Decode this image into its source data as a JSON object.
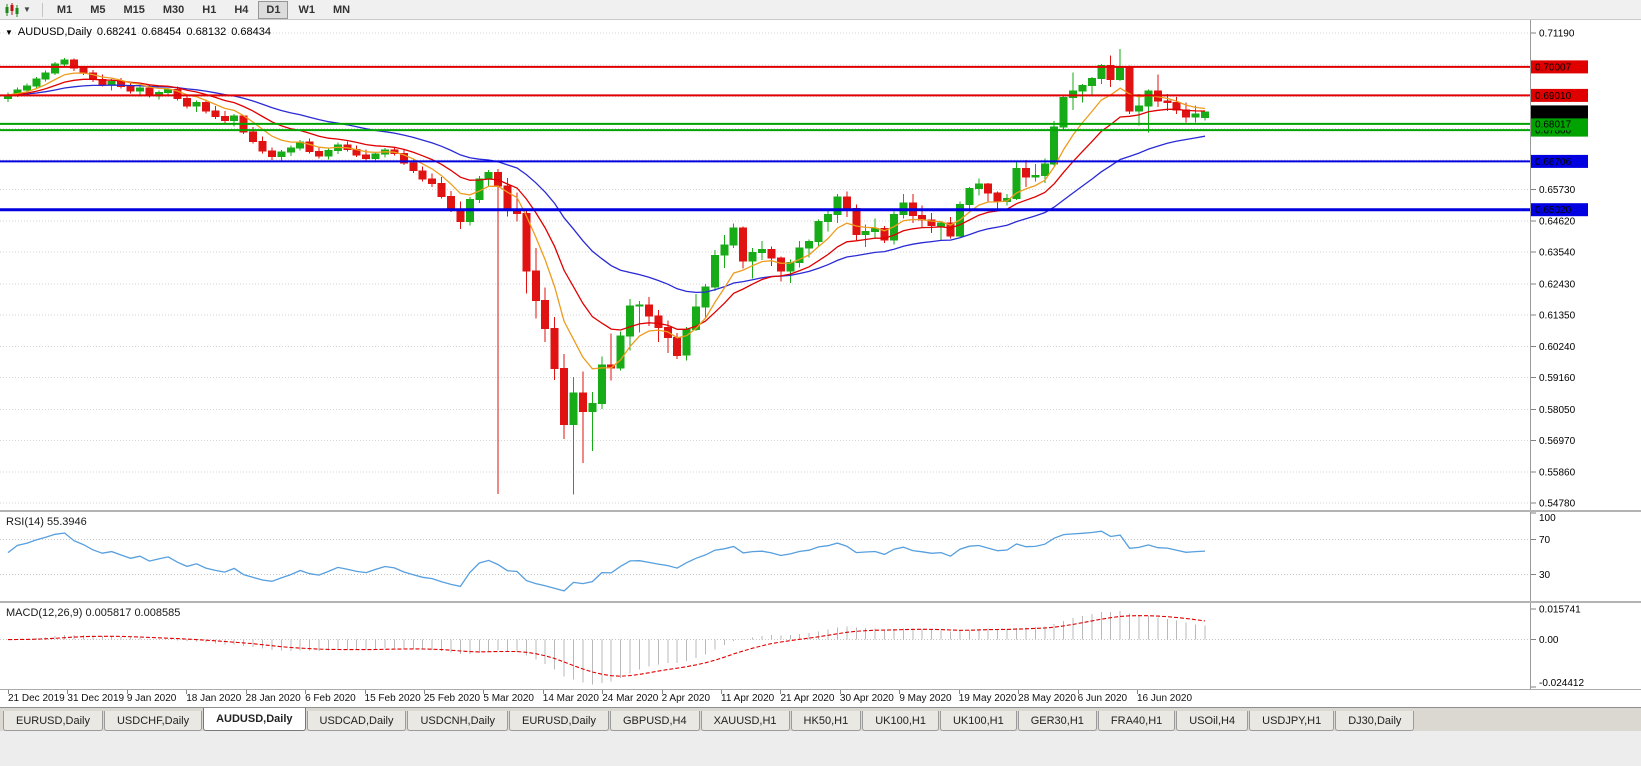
{
  "toolbar": {
    "timeframes": [
      "M1",
      "M5",
      "M15",
      "M30",
      "H1",
      "H4",
      "D1",
      "W1",
      "MN"
    ],
    "active_timeframe": "D1",
    "chart_type_icon": "candlestick-chart-icon",
    "caret_glyph": "▼"
  },
  "chart_header": {
    "dropdown_glyph": "▼",
    "symbol_label": "AUDUSD,Daily",
    "open": "0.68241",
    "high": "0.68454",
    "low": "0.68132",
    "close": "0.68434"
  },
  "chart_data": {
    "type": "candlestick",
    "symbol": "AUDUSD",
    "timeframe": "Daily",
    "colors": {
      "bull": "#17ab17",
      "bear": "#e01212",
      "grid": "#d6d6d6",
      "axis_line": "#9a9a9a"
    },
    "price_axis": {
      "max": 0.7119,
      "min": 0.5478,
      "grid": [
        0.7119,
        0.7008,
        0.6897,
        0.6786,
        0.6675,
        0.6573,
        0.6462,
        0.6354,
        0.6243,
        0.6135,
        0.6024,
        0.5916,
        0.5805,
        0.5697,
        0.5586,
        0.5478
      ]
    },
    "date_axis": [
      "21 Dec 2019",
      "31 Dec 2019",
      "9 Jan 2020",
      "18 Jan 2020",
      "28 Jan 2020",
      "6 Feb 2020",
      "15 Feb 2020",
      "25 Feb 2020",
      "5 Mar 2020",
      "14 Mar 2020",
      "24 Mar 2020",
      "2 Apr 2020",
      "11 Apr 2020",
      "21 Apr 2020",
      "30 Apr 2020",
      "9 May 2020",
      "19 May 2020",
      "28 May 2020",
      "6 Jun 2020",
      "16 Jun 2020"
    ],
    "candles": [
      [
        0.689,
        0.6912,
        0.6878,
        0.6903
      ],
      [
        0.6903,
        0.6928,
        0.6895,
        0.692
      ],
      [
        0.692,
        0.6943,
        0.6908,
        0.6934
      ],
      [
        0.6934,
        0.6965,
        0.6926,
        0.6958
      ],
      [
        0.6958,
        0.6988,
        0.695,
        0.698
      ],
      [
        0.698,
        0.7018,
        0.6972,
        0.701
      ],
      [
        0.701,
        0.7032,
        0.6999,
        0.7024
      ],
      [
        0.7024,
        0.703,
        0.6986,
        0.6996
      ],
      [
        0.6996,
        0.7004,
        0.6972,
        0.698
      ],
      [
        0.698,
        0.699,
        0.6948,
        0.6957
      ],
      [
        0.6957,
        0.6974,
        0.6932,
        0.694
      ],
      [
        0.694,
        0.6958,
        0.6918,
        0.695
      ],
      [
        0.695,
        0.6962,
        0.6925,
        0.6933
      ],
      [
        0.6933,
        0.6948,
        0.6908,
        0.6916
      ],
      [
        0.6916,
        0.6934,
        0.6898,
        0.6927
      ],
      [
        0.6927,
        0.694,
        0.6893,
        0.69
      ],
      [
        0.69,
        0.6919,
        0.6886,
        0.6911
      ],
      [
        0.6911,
        0.6927,
        0.6897,
        0.6921
      ],
      [
        0.6921,
        0.6933,
        0.6883,
        0.6891
      ],
      [
        0.6891,
        0.6903,
        0.6856,
        0.6864
      ],
      [
        0.6864,
        0.6884,
        0.6843,
        0.6876
      ],
      [
        0.6876,
        0.6887,
        0.6838,
        0.6846
      ],
      [
        0.6846,
        0.6864,
        0.6818,
        0.6828
      ],
      [
        0.6828,
        0.6847,
        0.6803,
        0.6813
      ],
      [
        0.6813,
        0.6837,
        0.6793,
        0.6829
      ],
      [
        0.6829,
        0.6833,
        0.6766,
        0.6774
      ],
      [
        0.6774,
        0.679,
        0.6733,
        0.6741
      ],
      [
        0.6741,
        0.6758,
        0.6698,
        0.6707
      ],
      [
        0.6707,
        0.672,
        0.6676,
        0.6688
      ],
      [
        0.6688,
        0.671,
        0.6668,
        0.6703
      ],
      [
        0.6703,
        0.6726,
        0.669,
        0.6718
      ],
      [
        0.6718,
        0.6746,
        0.6708,
        0.6738
      ],
      [
        0.6738,
        0.675,
        0.6698,
        0.6706
      ],
      [
        0.6706,
        0.6723,
        0.668,
        0.669
      ],
      [
        0.669,
        0.6716,
        0.6678,
        0.6708
      ],
      [
        0.6708,
        0.6736,
        0.6696,
        0.6728
      ],
      [
        0.6728,
        0.674,
        0.6706,
        0.6713
      ],
      [
        0.6713,
        0.6726,
        0.6686,
        0.6693
      ],
      [
        0.6693,
        0.6713,
        0.667,
        0.6681
      ],
      [
        0.6681,
        0.6703,
        0.6666,
        0.6696
      ],
      [
        0.6696,
        0.6718,
        0.6684,
        0.671
      ],
      [
        0.671,
        0.6721,
        0.6691,
        0.6699
      ],
      [
        0.6699,
        0.6712,
        0.6658,
        0.6665
      ],
      [
        0.6665,
        0.668,
        0.663,
        0.6638
      ],
      [
        0.6638,
        0.6653,
        0.6601,
        0.6609
      ],
      [
        0.6609,
        0.6628,
        0.6581,
        0.6593
      ],
      [
        0.6593,
        0.6616,
        0.6541,
        0.6549
      ],
      [
        0.6549,
        0.6567,
        0.6494,
        0.6504
      ],
      [
        0.6504,
        0.6531,
        0.6434,
        0.6461
      ],
      [
        0.6461,
        0.6547,
        0.6447,
        0.6538
      ],
      [
        0.6538,
        0.6619,
        0.6526,
        0.6609
      ],
      [
        0.6609,
        0.6641,
        0.6585,
        0.6632
      ],
      [
        0.6632,
        0.6645,
        0.551,
        0.6585
      ],
      [
        0.6585,
        0.6612,
        0.6478,
        0.65
      ],
      [
        0.65,
        0.6562,
        0.646,
        0.6488
      ],
      [
        0.6488,
        0.6502,
        0.621,
        0.6288
      ],
      [
        0.6288,
        0.6368,
        0.6122,
        0.6185
      ],
      [
        0.6185,
        0.623,
        0.604,
        0.6088
      ],
      [
        0.6088,
        0.6128,
        0.5908,
        0.5948
      ],
      [
        0.5948,
        0.5998,
        0.5702,
        0.5752
      ],
      [
        0.5752,
        0.5918,
        0.5508,
        0.5862
      ],
      [
        0.5862,
        0.5938,
        0.5618,
        0.5798
      ],
      [
        0.5798,
        0.5866,
        0.566,
        0.5826
      ],
      [
        0.5826,
        0.599,
        0.5806,
        0.596
      ],
      [
        0.596,
        0.607,
        0.5906,
        0.595
      ],
      [
        0.595,
        0.6076,
        0.594,
        0.6061
      ],
      [
        0.6061,
        0.6191,
        0.6011,
        0.6166
      ],
      [
        0.6166,
        0.6183,
        0.6073,
        0.617
      ],
      [
        0.617,
        0.6198,
        0.6096,
        0.6131
      ],
      [
        0.6131,
        0.6151,
        0.6041,
        0.6091
      ],
      [
        0.6091,
        0.6116,
        0.6001,
        0.6056
      ],
      [
        0.6056,
        0.6071,
        0.5981,
        0.5994
      ],
      [
        0.5994,
        0.6093,
        0.5976,
        0.6083
      ],
      [
        0.6083,
        0.6208,
        0.6078,
        0.6163
      ],
      [
        0.6163,
        0.6243,
        0.6123,
        0.6233
      ],
      [
        0.6233,
        0.6361,
        0.6218,
        0.6343
      ],
      [
        0.6343,
        0.6413,
        0.6298,
        0.6378
      ],
      [
        0.6378,
        0.6453,
        0.6368,
        0.6438
      ],
      [
        0.6438,
        0.6443,
        0.6296,
        0.6323
      ],
      [
        0.6323,
        0.6368,
        0.6261,
        0.6353
      ],
      [
        0.6353,
        0.6393,
        0.6326,
        0.6363
      ],
      [
        0.6363,
        0.6373,
        0.6306,
        0.6333
      ],
      [
        0.6333,
        0.6338,
        0.6251,
        0.6288
      ],
      [
        0.6288,
        0.6328,
        0.6246,
        0.6318
      ],
      [
        0.6318,
        0.6393,
        0.6301,
        0.6368
      ],
      [
        0.6368,
        0.6398,
        0.6336,
        0.6391
      ],
      [
        0.6391,
        0.6468,
        0.6371,
        0.6461
      ],
      [
        0.6461,
        0.6506,
        0.6426,
        0.6486
      ],
      [
        0.6486,
        0.6556,
        0.6456,
        0.6546
      ],
      [
        0.6546,
        0.6566,
        0.6476,
        0.6506
      ],
      [
        0.6506,
        0.6521,
        0.6396,
        0.6416
      ],
      [
        0.6416,
        0.6451,
        0.6371,
        0.6426
      ],
      [
        0.6426,
        0.6471,
        0.6401,
        0.6436
      ],
      [
        0.6436,
        0.6446,
        0.6386,
        0.6396
      ],
      [
        0.6396,
        0.6496,
        0.6381,
        0.6486
      ],
      [
        0.6486,
        0.6556,
        0.6471,
        0.6526
      ],
      [
        0.6526,
        0.6556,
        0.6456,
        0.6481
      ],
      [
        0.6481,
        0.6516,
        0.6441,
        0.6466
      ],
      [
        0.6466,
        0.6491,
        0.6421,
        0.6446
      ],
      [
        0.6446,
        0.6461,
        0.6396,
        0.6456
      ],
      [
        0.6456,
        0.6476,
        0.6401,
        0.6411
      ],
      [
        0.6411,
        0.6531,
        0.6406,
        0.6521
      ],
      [
        0.6521,
        0.6581,
        0.6501,
        0.6576
      ],
      [
        0.6576,
        0.6611,
        0.6551,
        0.6591
      ],
      [
        0.6591,
        0.6596,
        0.6531,
        0.6561
      ],
      [
        0.6561,
        0.6566,
        0.6501,
        0.6531
      ],
      [
        0.6531,
        0.6556,
        0.6516,
        0.6541
      ],
      [
        0.6541,
        0.6671,
        0.6536,
        0.6646
      ],
      [
        0.6646,
        0.6676,
        0.6581,
        0.6616
      ],
      [
        0.6616,
        0.6661,
        0.6601,
        0.6621
      ],
      [
        0.6621,
        0.6681,
        0.6596,
        0.6661
      ],
      [
        0.6661,
        0.6811,
        0.6656,
        0.6791
      ],
      [
        0.6791,
        0.6898,
        0.6781,
        0.6893
      ],
      [
        0.6893,
        0.6981,
        0.6851,
        0.6916
      ],
      [
        0.6916,
        0.6941,
        0.6876,
        0.6936
      ],
      [
        0.6936,
        0.6966,
        0.6901,
        0.6961
      ],
      [
        0.6961,
        0.7011,
        0.6941,
        0.7006
      ],
      [
        0.7006,
        0.7041,
        0.6931,
        0.6956
      ],
      [
        0.6956,
        0.7064,
        0.6951,
        0.6996
      ],
      [
        0.6996,
        0.7006,
        0.6836,
        0.6846
      ],
      [
        0.6846,
        0.6906,
        0.6796,
        0.6864
      ],
      [
        0.6864,
        0.6921,
        0.6771,
        0.6916
      ],
      [
        0.6916,
        0.6974,
        0.6861,
        0.6881
      ],
      [
        0.6881,
        0.6906,
        0.6846,
        0.6876
      ],
      [
        0.6876,
        0.6896,
        0.6836,
        0.6851
      ],
      [
        0.6851,
        0.6876,
        0.6806,
        0.6826
      ],
      [
        0.6826,
        0.6866,
        0.6806,
        0.6836
      ],
      [
        0.68241,
        0.68454,
        0.68132,
        0.68434
      ]
    ],
    "overlays": {
      "ema_fast": {
        "period": 7,
        "color": "#ed9c1e"
      },
      "ema_mid": {
        "period": 14,
        "color": "#e00000"
      },
      "ema_slow": {
        "period": 30,
        "color": "#2a2ad6"
      }
    },
    "hlines": [
      {
        "price": 0.70007,
        "color": "#e00000",
        "width": 2
      },
      {
        "price": 0.6901,
        "color": "#e00000",
        "width": 2
      },
      {
        "price": 0.678,
        "color": "#00a300",
        "width": 2
      },
      {
        "price": 0.68017,
        "color": "#00a300",
        "width": 2
      },
      {
        "price": 0.66706,
        "color": "#0000e0",
        "width": 2
      },
      {
        "price": 0.6502,
        "color": "#0000e0",
        "width": 3
      }
    ],
    "current_price": {
      "value": 0.68434,
      "badge_color": "#000000"
    },
    "rsi": {
      "label": "RSI(14)",
      "value_label": "55.3946",
      "period": 14,
      "levels": [
        100,
        70,
        30
      ],
      "dashed_levels": [
        70,
        30
      ],
      "color": "#579fde"
    },
    "macd": {
      "label": "MACD(12,26,9)",
      "value_main": "0.005817",
      "value_signal": "0.008585",
      "fast": 12,
      "slow": 26,
      "signal": 9,
      "axis_labels": [
        "0.015741",
        "0.00",
        "-0.024412"
      ],
      "axis_values": [
        0.015741,
        0,
        -0.024412
      ],
      "hist_color": "#b9b9b9",
      "signal_color": "#e00000"
    }
  },
  "tabs": {
    "active_index": 2,
    "items": [
      {
        "label": "EURUSD,Daily"
      },
      {
        "label": "USDCHF,Daily"
      },
      {
        "label": "AUDUSD,Daily"
      },
      {
        "label": "USDCAD,Daily"
      },
      {
        "label": "USDCNH,Daily"
      },
      {
        "label": "EURUSD,Daily"
      },
      {
        "label": "GBPUSD,H4"
      },
      {
        "label": "XAUUSD,H1"
      },
      {
        "label": "HK50,H1"
      },
      {
        "label": "UK100,H1"
      },
      {
        "label": "UK100,H1"
      },
      {
        "label": "GER30,H1"
      },
      {
        "label": "FRA40,H1"
      },
      {
        "label": "USOil,H4"
      },
      {
        "label": "USDJPY,H1"
      },
      {
        "label": "DJ30,Daily"
      }
    ]
  }
}
